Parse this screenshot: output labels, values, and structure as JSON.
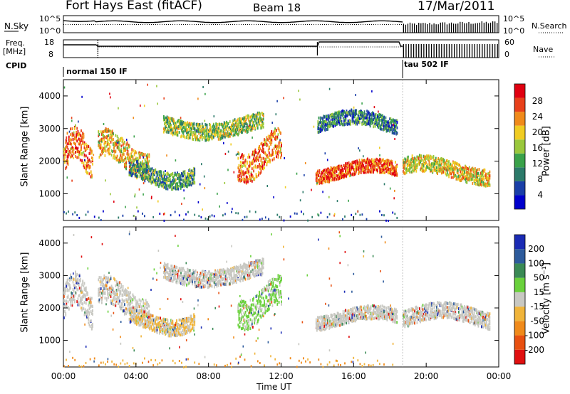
{
  "header": {
    "station": "Fort Hays East (fitACF)",
    "beam": "Beam 18",
    "date": "17/Mar/2011"
  },
  "side_labels": {
    "nsky": "N.Sky",
    "nsky_top": "10^5",
    "nsky_bottom": "10^0",
    "freq_line1": "Freq.",
    "freq_line2": "[MHz]",
    "freq_top": "18",
    "freq_bottom": "8",
    "cpid": "CPID",
    "nsearch": "N.Search",
    "nsearch_top": "10^5",
    "nsearch_bottom": "10^0",
    "nave": "Nave",
    "nave_top": "60",
    "nave_bottom": "0"
  },
  "cpid_modes": [
    {
      "label": "normal 150 IF",
      "start_hour": 0
    },
    {
      "label": "tau 502 IF",
      "start_hour": 18.7
    }
  ],
  "colors": {
    "power_scale": [
      "#0000cc",
      "#1a3fa8",
      "#2c7a6a",
      "#3aa24a",
      "#9ac83c",
      "#f0cc22",
      "#f08a1a",
      "#e8401a",
      "#e00010"
    ],
    "velocity_scale": [
      "#1a2bb4",
      "#2d5b9c",
      "#3a8a55",
      "#6ad13c",
      "#c8c8c2",
      "#f0b43a",
      "#f08a1a",
      "#e85010",
      "#e01010"
    ],
    "grey_scatter": "#c8c8c2"
  },
  "chart_data": [
    {
      "type": "heatmap",
      "name": "power",
      "xlabel": "Time UT",
      "ylabel": "Slant Range [km]",
      "xlim": [
        0,
        24
      ],
      "ylim": [
        180,
        4500
      ],
      "x_ticks": [
        "00:00",
        "04:00",
        "08:00",
        "12:00",
        "16:00",
        "20:00",
        "00:00"
      ],
      "y_ticks": [
        1000,
        2000,
        3000,
        4000
      ],
      "colorbar": {
        "label": "Power [dB]",
        "ticks": [
          "4",
          "8",
          "12",
          "16",
          "20",
          "24",
          "28"
        ],
        "range": [
          0,
          30
        ]
      },
      "echo_bands": [
        {
          "t": [
            0.0,
            1.6
          ],
          "range_km": [
            1300,
            3100
          ],
          "power_db": 24
        },
        {
          "t": [
            1.9,
            4.7
          ],
          "range_km": [
            1500,
            3000
          ],
          "power_db": 20
        },
        {
          "t": [
            3.6,
            7.2
          ],
          "range_km": [
            1200,
            2100
          ],
          "power_db": 10
        },
        {
          "t": [
            5.5,
            11.0
          ],
          "range_km": [
            2700,
            3600
          ],
          "power_db": 14
        },
        {
          "t": [
            9.6,
            12.0
          ],
          "range_km": [
            1400,
            3000
          ],
          "power_db": 24
        },
        {
          "t": [
            13.9,
            18.4
          ],
          "range_km": [
            1350,
            2100
          ],
          "power_db": 26
        },
        {
          "t": [
            14.0,
            18.4
          ],
          "range_km": [
            2800,
            3600
          ],
          "power_db": 8
        },
        {
          "t": [
            18.7,
            23.5
          ],
          "range_km": [
            1300,
            2200
          ],
          "power_db": 18
        }
      ]
    },
    {
      "type": "heatmap",
      "name": "velocity",
      "xlabel": "Time UT",
      "ylabel": "Slant Range [km]",
      "xlim": [
        0,
        24
      ],
      "ylim": [
        180,
        4500
      ],
      "x_ticks": [
        "00:00",
        "04:00",
        "08:00",
        "12:00",
        "16:00",
        "20:00",
        "00:00"
      ],
      "y_ticks": [
        1000,
        2000,
        3000,
        4000
      ],
      "colorbar": {
        "label": "Velocity [m s⁻¹]",
        "ticks": [
          "200",
          "100",
          "50",
          "15",
          "-15",
          "-50",
          "-100",
          "-200"
        ],
        "range": [
          -250,
          250
        ]
      },
      "echo_bands": [
        {
          "t": [
            0.0,
            1.6
          ],
          "range_km": [
            1300,
            3100
          ],
          "velocity": 0
        },
        {
          "t": [
            1.9,
            4.7
          ],
          "range_km": [
            1500,
            3000
          ],
          "velocity": 0
        },
        {
          "t": [
            3.6,
            7.2
          ],
          "range_km": [
            1200,
            2100
          ],
          "velocity": -40
        },
        {
          "t": [
            5.5,
            11.0
          ],
          "range_km": [
            2700,
            3600
          ],
          "velocity": 0
        },
        {
          "t": [
            9.6,
            12.0
          ],
          "range_km": [
            1400,
            3000
          ],
          "velocity": 40
        },
        {
          "t": [
            13.9,
            18.4
          ],
          "range_km": [
            1350,
            2100
          ],
          "velocity": 0
        },
        {
          "t": [
            18.7,
            23.5
          ],
          "range_km": [
            1300,
            2200
          ],
          "velocity": 0
        }
      ]
    }
  ]
}
